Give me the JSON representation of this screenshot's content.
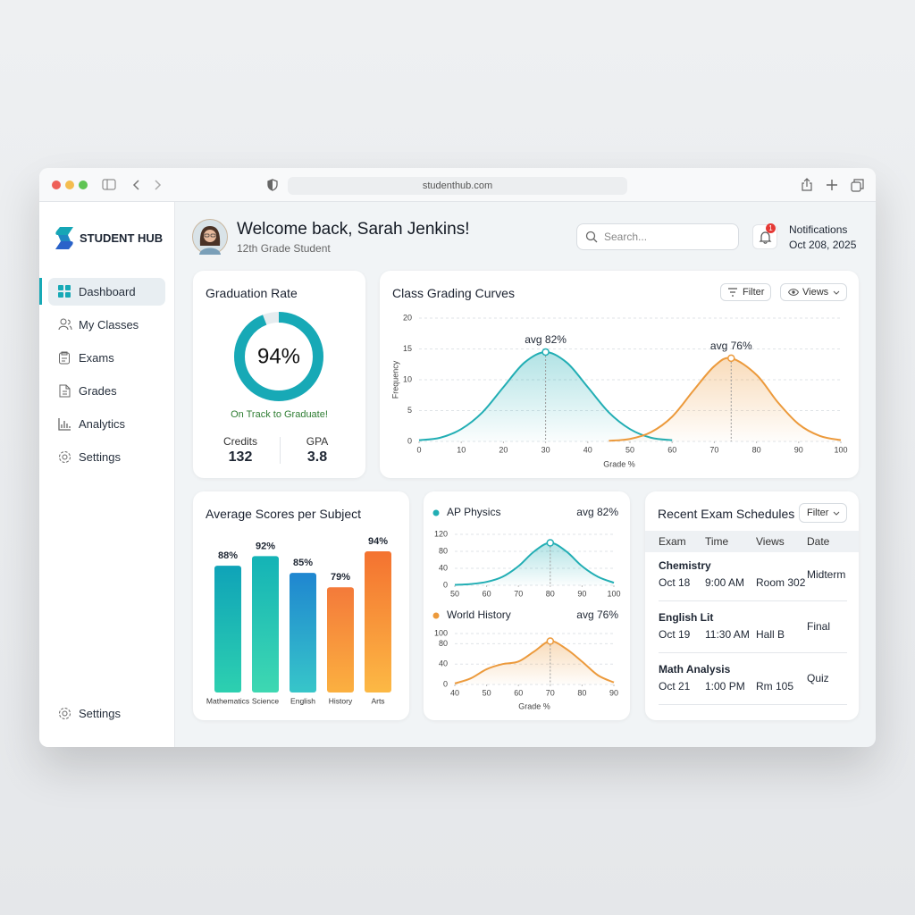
{
  "browser": {
    "url": "studenthub.com"
  },
  "sidebar": {
    "brand": "STUDENT HUB",
    "nav": [
      "Dashboard",
      "My Classes",
      "Exams",
      "Grades",
      "Analytics",
      "Settings"
    ],
    "footer": "Settings"
  },
  "header": {
    "welcome": "Welcome back, Sarah Jenkins!",
    "role": "12th Grade Student",
    "search_placeholder": "Search...",
    "notification_count": 1,
    "notifications": "Notifications",
    "date": "Oct 208, 2025"
  },
  "graduation": {
    "status": "On Track to Graduate!",
    "stats": [
      {
        "label": "Credits",
        "value": 132
      },
      {
        "label": "GPA",
        "value": 3.8
      }
    ]
  },
  "curves_controls": {
    "filter": "Filter",
    "views": "Views"
  },
  "exams": {
    "title": "Recent Exam Schedules",
    "filter": "Filter",
    "columns": [
      "Exam",
      "Time",
      "Views",
      "Date"
    ],
    "rows": [
      {
        "exam": "Chemistry",
        "date": "Oct 18",
        "time": "9:00 AM",
        "room": "Room 302",
        "type": "Midterm"
      },
      {
        "exam": "English Lit",
        "date": "Oct 19",
        "time": "11:30 AM",
        "room": "Hall B",
        "type": "Final"
      },
      {
        "exam": "Math Analysis",
        "date": "Oct 21",
        "time": "1:00 PM",
        "room": "Rm 105",
        "type": "Quiz"
      }
    ]
  },
  "chart_data": [
    {
      "type": "gauge",
      "title": "Graduation Rate",
      "value": 94,
      "value_label": "94%",
      "ylim": [
        0,
        100
      ],
      "color": "#17a9b6"
    },
    {
      "type": "line",
      "title": "Class Grading Curves",
      "x_label": "Grade %",
      "y_label": "Frequency",
      "xlim": [
        0,
        100
      ],
      "ylim": [
        0,
        20
      ],
      "xticks": [
        0,
        10,
        20,
        30,
        40,
        50,
        60,
        70,
        80,
        90,
        100
      ],
      "yticks": [
        0,
        5,
        10,
        15,
        20
      ],
      "grid": true,
      "series": [
        {
          "color": "#22aeb4",
          "x": [
            0,
            5,
            10,
            15,
            20,
            25,
            30,
            35,
            40,
            45,
            50,
            55,
            60
          ],
          "values": [
            0.2,
            0.6,
            2,
            4.7,
            8.8,
            12.8,
            14.5,
            12.8,
            8.8,
            4.7,
            2,
            0.6,
            0.2
          ],
          "annotation": "avg 82%"
        },
        {
          "color": "#ec9a3c",
          "x": [
            45,
            50,
            55,
            60,
            65,
            70,
            74,
            80,
            85,
            90,
            95,
            100
          ],
          "values": [
            0.1,
            0.4,
            1.5,
            4,
            8.2,
            12.2,
            13.5,
            10.8,
            6.4,
            2.8,
            0.9,
            0.2
          ],
          "annotation": "avg 76%"
        }
      ]
    },
    {
      "type": "bar",
      "title": "Average Scores per Subject",
      "categories": [
        "Mathematics",
        "Science",
        "English",
        "History",
        "Arts"
      ],
      "values": [
        88,
        92,
        85,
        79,
        94
      ],
      "value_labels": [
        "88%",
        "92%",
        "85%",
        "79%",
        "94%"
      ],
      "ylim": [
        35,
        100
      ],
      "colors": [
        [
          "#0fa3b8",
          "#2dd0b0"
        ],
        [
          "#14b3b6",
          "#3ed8b2"
        ],
        [
          "#1f86d0",
          "#37c6c9"
        ],
        [
          "#f47a3a",
          "#fbb040"
        ],
        [
          "#f47230",
          "#fcb945"
        ]
      ]
    },
    {
      "type": "line",
      "xlim": [
        50,
        100
      ],
      "ylim": [
        0,
        120
      ],
      "xticks": [
        50,
        60,
        70,
        80,
        90,
        100
      ],
      "yticks": [
        0,
        40,
        80,
        120
      ],
      "grid": true,
      "series": [
        {
          "name": "AP Physics",
          "color": "#22aeb4",
          "x": [
            50,
            55,
            60,
            65,
            70,
            75,
            80,
            85,
            90,
            95,
            100
          ],
          "values": [
            1,
            3,
            8,
            20,
            45,
            80,
            100,
            80,
            45,
            20,
            6
          ],
          "annotation": "avg 82%"
        }
      ]
    },
    {
      "type": "line",
      "x_label": "Grade %",
      "xlim": [
        40,
        90
      ],
      "ylim": [
        0,
        100
      ],
      "xticks": [
        40,
        50,
        60,
        70,
        80,
        90
      ],
      "yticks": [
        0,
        40,
        80,
        100
      ],
      "grid": true,
      "series": [
        {
          "name": "World History",
          "color": "#ec9a3c",
          "x": [
            40,
            45,
            50,
            55,
            60,
            65,
            70,
            75,
            80,
            85,
            90
          ],
          "values": [
            2,
            12,
            30,
            40,
            45,
            65,
            85,
            70,
            45,
            18,
            4
          ],
          "annotation": "avg 76%"
        }
      ]
    }
  ]
}
